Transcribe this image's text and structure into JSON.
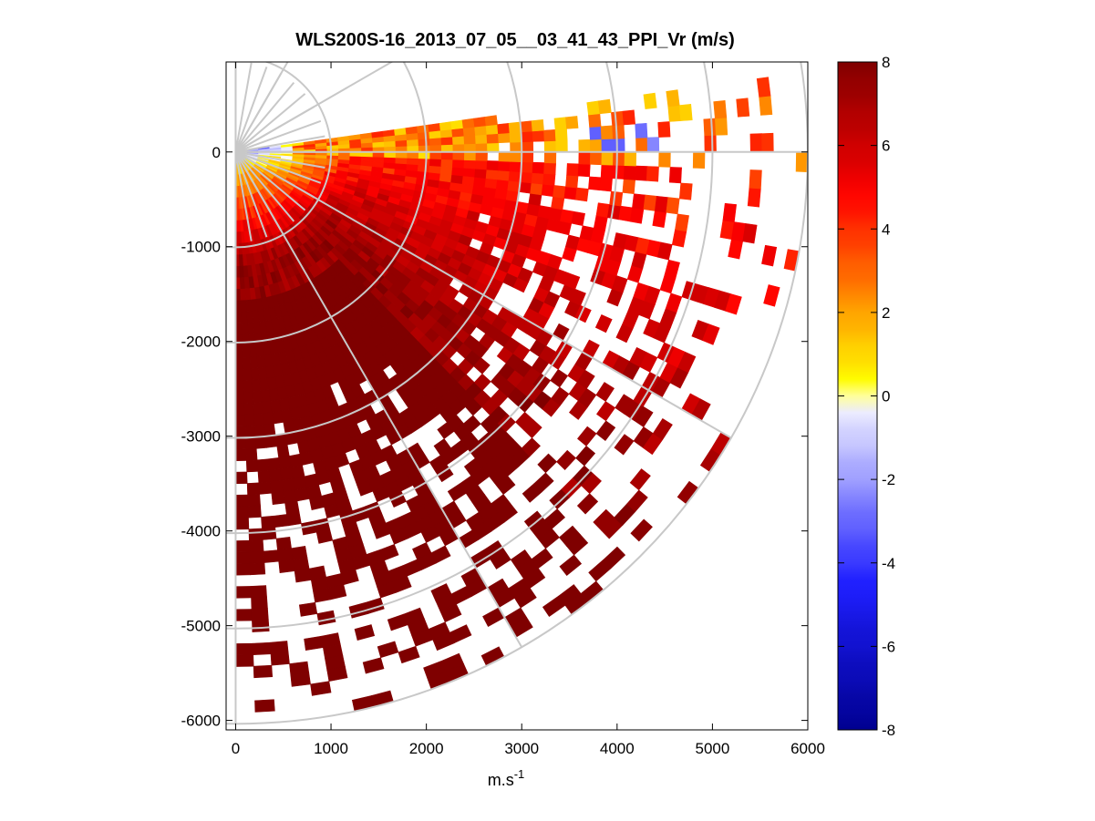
{
  "chart_data": {
    "type": "heatmap",
    "subtype": "ppi-polar-sector",
    "title": "WLS200S-16_2013_07_05__03_41_43_PPI_Vr (m/s)",
    "xlabel_base": "m.s",
    "xlabel_sup": "-1",
    "ylabel": "",
    "xlim": [
      -100,
      6000
    ],
    "ylim": [
      -6100,
      950
    ],
    "xticks": [
      0,
      1000,
      2000,
      3000,
      4000,
      5000,
      6000
    ],
    "yticks": [
      0,
      -1000,
      -2000,
      -3000,
      -4000,
      -5000,
      -6000
    ],
    "colorbar": {
      "range": [
        -8,
        8
      ],
      "ticks": [
        8,
        6,
        4,
        2,
        0,
        -2,
        -4,
        -6,
        -8
      ],
      "colormap": "blue-white-yellow-red-darkred",
      "stops": [
        "#00008f",
        "#1f1fff",
        "#ffffff",
        "#ffff00",
        "#ff8000",
        "#ff0000",
        "#7f0000"
      ]
    },
    "sector": {
      "azimuth_min_deg": -90,
      "azimuth_max_deg": 8,
      "range_max_m": 6000,
      "range_gate_m": 120,
      "beam_width_deg": 2,
      "grid_ring_radii_m": [
        1000,
        2000,
        3000,
        4000,
        5000,
        6000
      ],
      "grid_spoke_angles_deg": [
        -90,
        -60,
        -30,
        0,
        30,
        60,
        90
      ]
    },
    "observations": {
      "dominant_value_ms": 8,
      "near_field_range_m": [
        0,
        800
      ],
      "near_field_values_ms": [
        1,
        4
      ],
      "negative_patch_range_m": [
        3700,
        4500
      ],
      "negative_patch_azimuth_deg": [
        0,
        8
      ],
      "negative_patch_value_ms": -3,
      "data_gaps": "increasing missing bins beyond ~3000 m"
    },
    "grid": true,
    "legend": "colorbar-right"
  }
}
